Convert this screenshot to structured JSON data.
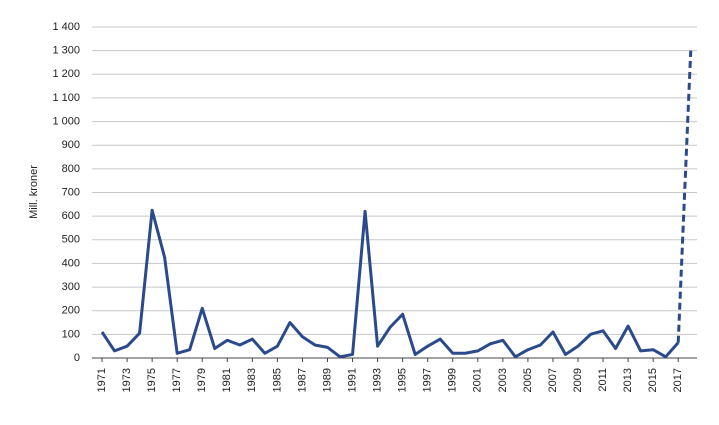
{
  "chart_data": {
    "type": "line",
    "y_label": "Mill. kroner",
    "x": [
      1971,
      1972,
      1973,
      1974,
      1975,
      1976,
      1977,
      1978,
      1979,
      1980,
      1981,
      1982,
      1983,
      1984,
      1985,
      1986,
      1987,
      1988,
      1989,
      1990,
      1991,
      1992,
      1993,
      1994,
      1995,
      1996,
      1997,
      1998,
      1999,
      2000,
      2001,
      2002,
      2003,
      2004,
      2005,
      2006,
      2007,
      2008,
      2009,
      2010,
      2011,
      2012,
      2013,
      2014,
      2015,
      2016,
      2017,
      2018
    ],
    "series": [
      {
        "color": "#2b4a8c",
        "dashed": false,
        "values": [
          110,
          30,
          50,
          105,
          625,
          425,
          20,
          35,
          210,
          40,
          75,
          55,
          80,
          20,
          50,
          150,
          90,
          55,
          45,
          5,
          15,
          620,
          50,
          130,
          185,
          15,
          50,
          80,
          20,
          20,
          30,
          60,
          75,
          5,
          35,
          55,
          110,
          15,
          50,
          100,
          115,
          40,
          135,
          30,
          35,
          5,
          65,
          null
        ]
      },
      {
        "color": "#2b4a8c",
        "dashed": true,
        "values": [
          null,
          null,
          null,
          null,
          null,
          null,
          null,
          null,
          null,
          null,
          null,
          null,
          null,
          null,
          null,
          null,
          null,
          null,
          null,
          null,
          null,
          null,
          null,
          null,
          null,
          null,
          null,
          null,
          null,
          null,
          null,
          null,
          null,
          null,
          null,
          null,
          null,
          null,
          null,
          null,
          null,
          null,
          null,
          null,
          null,
          null,
          65,
          1300
        ]
      }
    ],
    "xlim": [
      1970.2,
      2018.5
    ],
    "xticks": [
      1971,
      1973,
      1975,
      1977,
      1979,
      1981,
      1983,
      1985,
      1987,
      1989,
      1991,
      1993,
      1995,
      1997,
      1999,
      2001,
      2003,
      2005,
      2007,
      2009,
      2011,
      2013,
      2015,
      2017
    ],
    "ylim": [
      0,
      1400
    ],
    "yticks": [
      0,
      100,
      200,
      300,
      400,
      500,
      600,
      700,
      800,
      900,
      {
        "value": 1000,
        "label": "1 000"
      },
      {
        "value": 1100,
        "label": "1 100"
      },
      {
        "value": 1200,
        "label": "1 200"
      },
      {
        "value": 1300,
        "label": "1 300"
      },
      {
        "value": 1400,
        "label": "1 400"
      }
    ],
    "grid": true
  }
}
